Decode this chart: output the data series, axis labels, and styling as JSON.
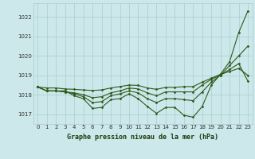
{
  "background_color": "#cce8ea",
  "grid_color": "#aacccc",
  "line_color": "#2d5a1b",
  "title": "Graphe pression niveau de la mer (hPa)",
  "xlim": [
    -0.5,
    23.5
  ],
  "ylim": [
    1016.5,
    1022.7
  ],
  "yticks": [
    1017,
    1018,
    1019,
    1020,
    1021,
    1022
  ],
  "xticks": [
    0,
    1,
    2,
    3,
    4,
    5,
    6,
    7,
    8,
    9,
    10,
    11,
    12,
    13,
    14,
    15,
    16,
    17,
    18,
    19,
    20,
    21,
    22,
    23
  ],
  "series": [
    [
      1018.4,
      1018.2,
      1018.2,
      1018.2,
      1017.95,
      1017.8,
      1017.3,
      1017.35,
      1017.75,
      1017.8,
      1018.05,
      1017.8,
      1017.4,
      1017.05,
      1017.35,
      1017.35,
      1016.95,
      1016.85,
      1017.4,
      1018.5,
      1019.05,
      1019.7,
      1021.2,
      1022.3
    ],
    [
      1018.4,
      1018.2,
      1018.2,
      1018.15,
      1018.05,
      1017.9,
      1017.6,
      1017.65,
      1017.95,
      1018.05,
      1018.2,
      1018.1,
      1017.8,
      1017.6,
      1017.8,
      1017.8,
      1017.75,
      1017.7,
      1018.15,
      1018.65,
      1019.0,
      1019.5,
      1020.0,
      1020.5
    ],
    [
      1018.4,
      1018.2,
      1018.2,
      1018.15,
      1018.1,
      1018.0,
      1017.85,
      1017.9,
      1018.1,
      1018.2,
      1018.35,
      1018.3,
      1018.1,
      1017.95,
      1018.15,
      1018.15,
      1018.15,
      1018.15,
      1018.5,
      1018.8,
      1019.0,
      1019.3,
      1019.6,
      1018.7
    ],
    [
      1018.4,
      1018.35,
      1018.35,
      1018.3,
      1018.28,
      1018.25,
      1018.22,
      1018.25,
      1018.35,
      1018.42,
      1018.5,
      1018.48,
      1018.35,
      1018.28,
      1018.38,
      1018.38,
      1018.42,
      1018.42,
      1018.65,
      1018.85,
      1019.05,
      1019.2,
      1019.35,
      1019.0
    ]
  ]
}
